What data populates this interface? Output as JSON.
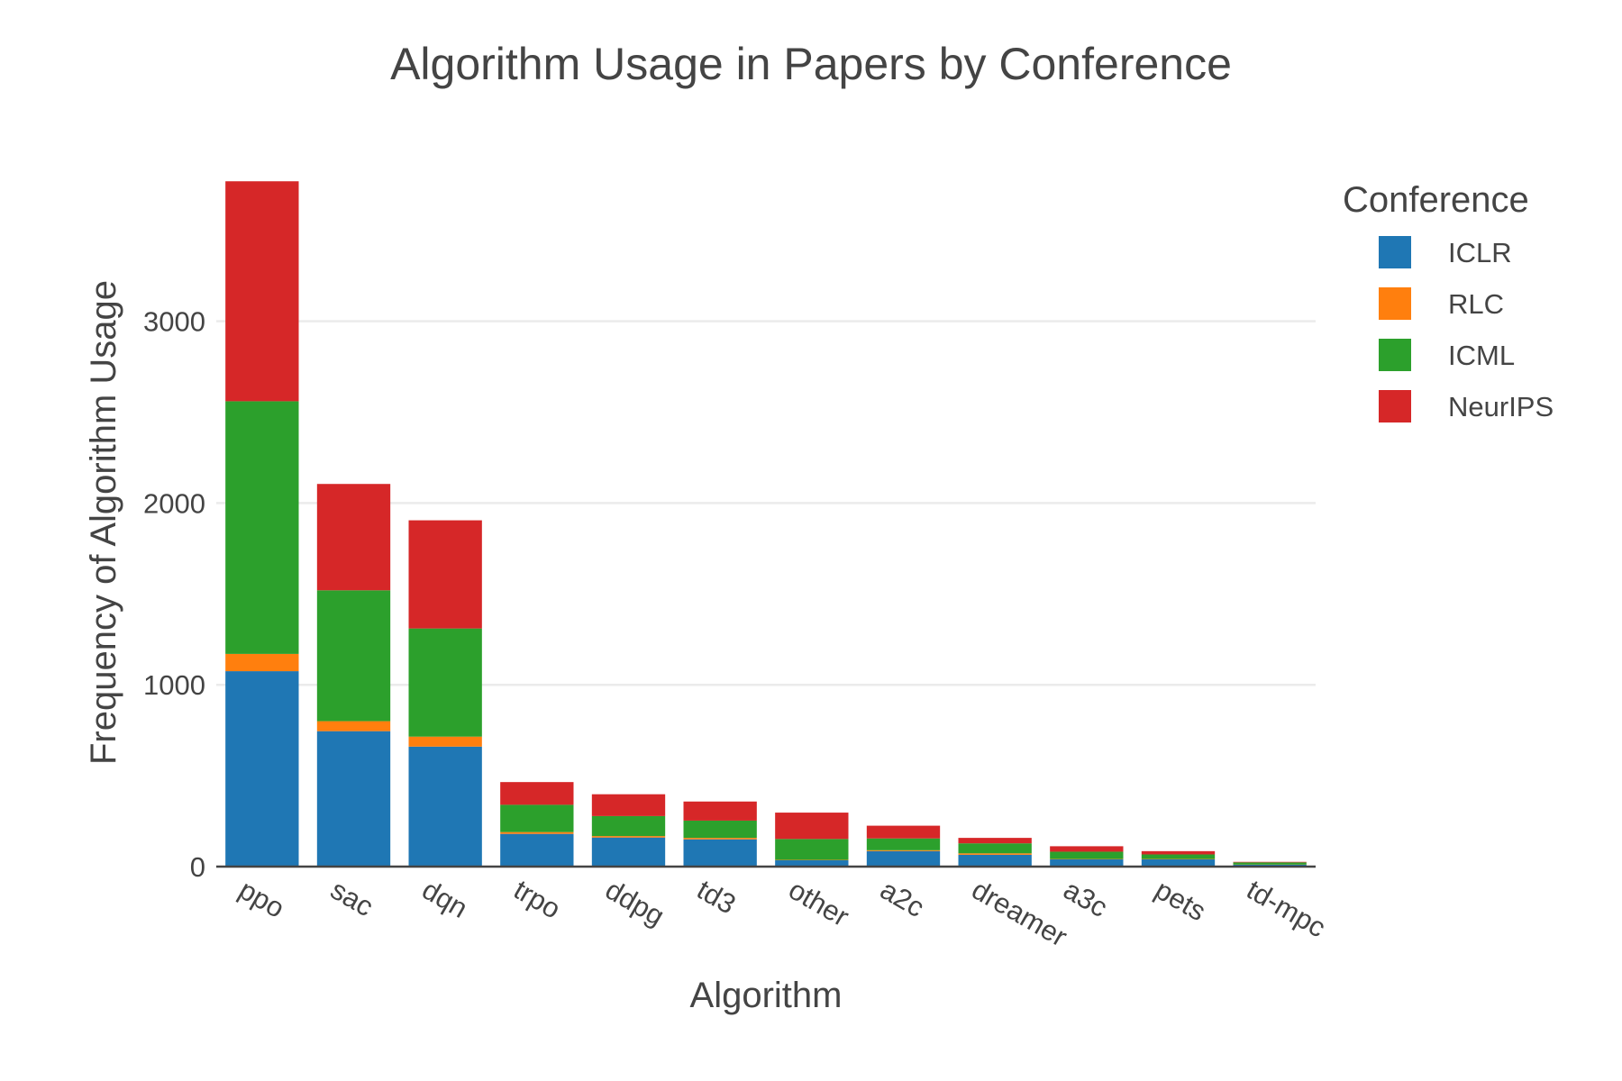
{
  "chart_data": {
    "type": "bar",
    "stacked": true,
    "title": "Algorithm Usage in Papers by Conference",
    "xlabel": "Algorithm",
    "ylabel": "Frequency of Algorithm Usage",
    "ylim": [
      0,
      3900
    ],
    "yticks": [
      0,
      1000,
      2000,
      3000
    ],
    "grid": true,
    "legend_title": "Conference",
    "legend_position": "top-right",
    "categories": [
      "ppo",
      "sac",
      "dqn",
      "trpo",
      "ddpg",
      "td3",
      "other",
      "a2c",
      "dreamer",
      "a3c",
      "pets",
      "td-mpc"
    ],
    "series": [
      {
        "name": "ICLR",
        "color": "#1f77b4",
        "values": [
          1075,
          745,
          660,
          180,
          160,
          150,
          35,
          85,
          65,
          40,
          40,
          10
        ]
      },
      {
        "name": "RLC",
        "color": "#ff7f0e",
        "values": [
          95,
          55,
          55,
          10,
          8,
          8,
          2,
          5,
          8,
          2,
          2,
          1
        ]
      },
      {
        "name": "ICML",
        "color": "#2ca02c",
        "values": [
          1390,
          720,
          595,
          150,
          110,
          95,
          115,
          65,
          55,
          40,
          25,
          12
        ]
      },
      {
        "name": "NeurIPS",
        "color": "#d62728",
        "values": [
          1210,
          585,
          595,
          125,
          120,
          105,
          145,
          70,
          30,
          30,
          18,
          3
        ]
      }
    ]
  }
}
